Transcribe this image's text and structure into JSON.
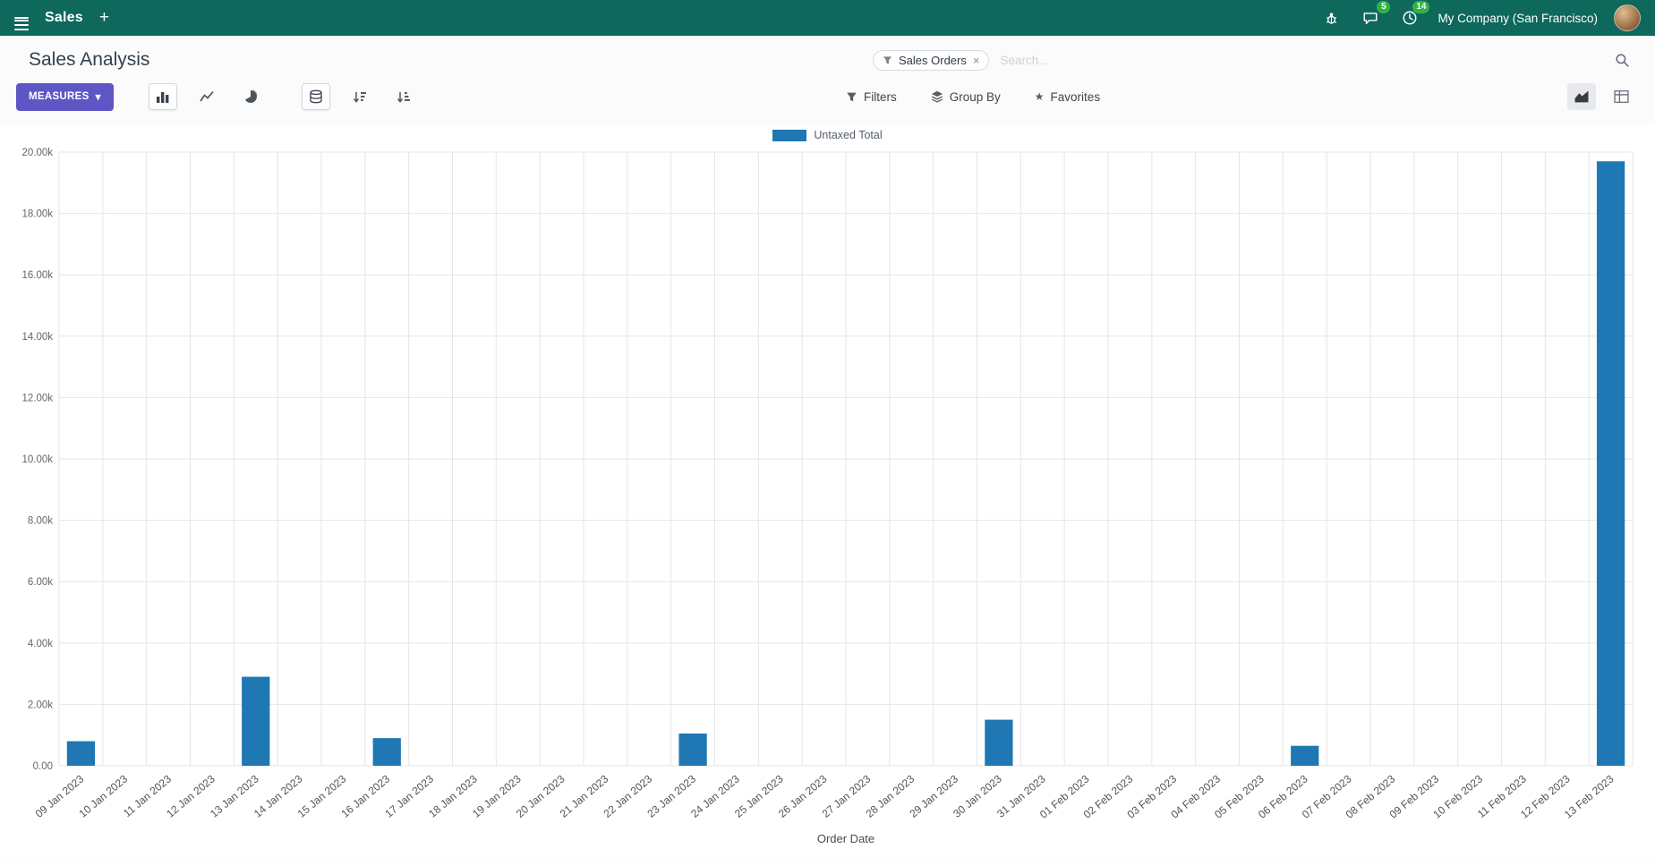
{
  "navbar": {
    "app_name": "Sales",
    "company_name": "My Company (San Francisco)",
    "badges": {
      "messages": "5",
      "activities": "14"
    }
  },
  "control_panel": {
    "title": "Sales Analysis",
    "search": {
      "facet_label": "Sales Orders",
      "placeholder": "Search..."
    },
    "buttons": {
      "measures": "MEASURES",
      "filters": "Filters",
      "group_by": "Group By",
      "favorites": "Favorites"
    }
  },
  "icons": {
    "plus": "+",
    "caret_down": "▾",
    "close": "×",
    "star": "★"
  },
  "colors": {
    "navbar_bg": "#0e685c",
    "primary_button": "#5f56c6",
    "bar": "#1f77b4",
    "badge_green": "#2fb344"
  },
  "chart_data": {
    "type": "bar",
    "title": "",
    "xlabel": "Order Date",
    "ylabel": "",
    "ylim": [
      0,
      20000
    ],
    "y_tick_step": 2000,
    "y_tick_labels": [
      "0.00",
      "2.00k",
      "4.00k",
      "6.00k",
      "8.00k",
      "10.00k",
      "12.00k",
      "14.00k",
      "16.00k",
      "18.00k",
      "20.00k"
    ],
    "grid": true,
    "legend_position": "top-center",
    "categories": [
      "09 Jan 2023",
      "10 Jan 2023",
      "11 Jan 2023",
      "12 Jan 2023",
      "13 Jan 2023",
      "14 Jan 2023",
      "15 Jan 2023",
      "16 Jan 2023",
      "17 Jan 2023",
      "18 Jan 2023",
      "19 Jan 2023",
      "20 Jan 2023",
      "21 Jan 2023",
      "22 Jan 2023",
      "23 Jan 2023",
      "24 Jan 2023",
      "25 Jan 2023",
      "26 Jan 2023",
      "27 Jan 2023",
      "28 Jan 2023",
      "29 Jan 2023",
      "30 Jan 2023",
      "31 Jan 2023",
      "01 Feb 2023",
      "02 Feb 2023",
      "03 Feb 2023",
      "04 Feb 2023",
      "05 Feb 2023",
      "06 Feb 2023",
      "07 Feb 2023",
      "08 Feb 2023",
      "09 Feb 2023",
      "10 Feb 2023",
      "11 Feb 2023",
      "12 Feb 2023",
      "13 Feb 2023"
    ],
    "series": [
      {
        "name": "Untaxed Total",
        "color": "#1f77b4",
        "values": [
          800,
          0,
          0,
          0,
          2900,
          0,
          0,
          900,
          0,
          0,
          0,
          0,
          0,
          0,
          1050,
          0,
          0,
          0,
          0,
          0,
          0,
          1500,
          0,
          0,
          0,
          0,
          0,
          0,
          650,
          0,
          0,
          0,
          0,
          0,
          0,
          19700
        ]
      }
    ]
  }
}
